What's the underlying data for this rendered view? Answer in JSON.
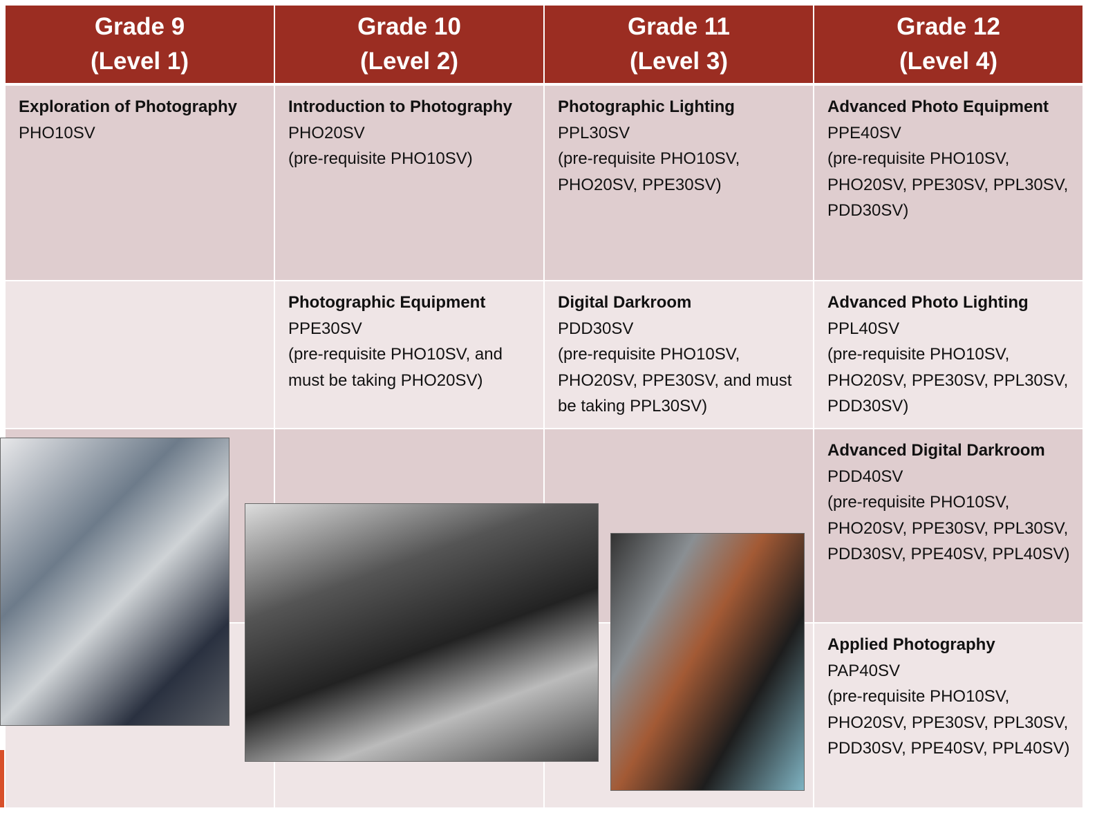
{
  "header": {
    "columns": [
      {
        "grade": "Grade 9",
        "level": "(Level 1)"
      },
      {
        "grade": "Grade 10",
        "level": "(Level 2)"
      },
      {
        "grade": "Grade 11",
        "level": "(Level 3)"
      },
      {
        "grade": "Grade 12",
        "level": "(Level 4)"
      }
    ]
  },
  "table": {
    "rows": [
      [
        {
          "title": "Exploration of Photography",
          "code": "PHO10SV"
        },
        {
          "title": "Introduction to Photography",
          "code": "PHO20SV",
          "note": "(pre-requisite PHO10SV)"
        },
        {
          "title": "Photographic Lighting",
          "code": "PPL30SV",
          "note": "(pre-requisite PHO10SV, PHO20SV, PPE30SV)"
        },
        {
          "title": "Advanced Photo Equipment",
          "code": "PPE40SV",
          "note": "(pre-requisite PHO10SV, PHO20SV, PPE30SV, PPL30SV, PDD30SV)"
        }
      ],
      [
        null,
        {
          "title": "Photographic Equipment",
          "code": "PPE30SV",
          "note": "(pre-requisite PHO10SV, and must be taking PHO20SV)"
        },
        {
          "title": "Digital Darkroom",
          "code": "PDD30SV",
          "note": "(pre-requisite PHO10SV, PHO20SV, PPE30SV, and must be taking PPL30SV)"
        },
        {
          "title": "Advanced Photo Lighting",
          "code": "PPL40SV",
          "note": "(pre-requisite PHO10SV, PHO20SV, PPE30SV, PPL30SV, PDD30SV)"
        }
      ],
      [
        null,
        null,
        null,
        {
          "title": "Advanced Digital Darkroom",
          "code": "PDD40SV",
          "note": "(pre-requisite PHO10SV, PHO20SV, PPE30SV, PPL30SV, PDD30SV, PPE40SV, PPL40SV)"
        }
      ],
      [
        null,
        null,
        null,
        {
          "title": "Applied Photography",
          "code": "PAP40SV",
          "note": "(pre-requisite PHO10SV, PHO20SV, PPE30SV, PPL30SV, PDD30SV, PPE40SV, PPL40SV)"
        }
      ]
    ]
  }
}
